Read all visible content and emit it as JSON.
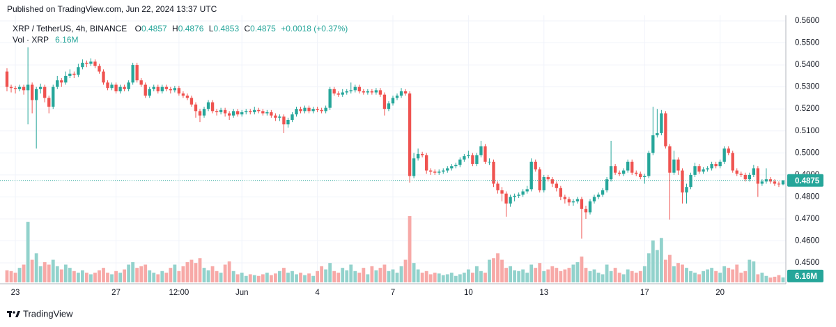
{
  "header": {
    "published": "Published on TradingView.com, Jun 22, 2024 13:37 UTC"
  },
  "footer": {
    "brand": "TradingView"
  },
  "chart_data": {
    "type": "candlestick",
    "title": "XRP / TetherUS, 4h, BINANCE",
    "ohlc_prefixes": [
      "O",
      "H",
      "L",
      "C"
    ],
    "change": "+0.0018 (+0.37%)",
    "volume_title": "Vol · XRP",
    "volume_label": "6.16M",
    "up_color": "#26a69a",
    "down_color": "#ef5350",
    "volume_up_color": "#92d2cc",
    "volume_down_color": "#f7a9a7",
    "ylim": [
      0.44114,
      0.56254
    ],
    "yticks": [
      {
        "value": 0.45,
        "label": "0.4500"
      },
      {
        "value": 0.46,
        "label": "0.4600"
      },
      {
        "value": 0.47,
        "label": "0.4700"
      },
      {
        "value": 0.48,
        "label": "0.4800"
      },
      {
        "value": 0.49,
        "label": "0.4900"
      },
      {
        "value": 0.5,
        "label": "0.5000"
      },
      {
        "value": 0.51,
        "label": "0.5100"
      },
      {
        "value": 0.52,
        "label": "0.5200"
      },
      {
        "value": 0.53,
        "label": "0.5300"
      },
      {
        "value": 0.54,
        "label": "0.5400"
      },
      {
        "value": 0.55,
        "label": "0.5500"
      },
      {
        "value": 0.56,
        "label": "0.5600"
      }
    ],
    "grid": true,
    "last_price_line": true,
    "categories": [
      null,
      null,
      "23",
      null,
      null,
      null,
      null,
      null,
      null,
      null,
      null,
      null,
      null,
      null,
      null,
      null,
      null,
      null,
      null,
      null,
      null,
      null,
      null,
      null,
      null,
      null,
      "27",
      null,
      null,
      null,
      null,
      null,
      null,
      null,
      null,
      null,
      null,
      null,
      null,
      null,
      null,
      "12:00",
      null,
      null,
      null,
      null,
      null,
      null,
      null,
      null,
      null,
      null,
      null,
      null,
      null,
      null,
      "Jun",
      null,
      null,
      null,
      null,
      null,
      null,
      null,
      null,
      null,
      null,
      null,
      null,
      null,
      null,
      null,
      null,
      null,
      "4",
      null,
      null,
      null,
      null,
      null,
      null,
      null,
      null,
      null,
      null,
      null,
      null,
      null,
      null,
      null,
      null,
      null,
      "7",
      null,
      null,
      null,
      null,
      null,
      null,
      null,
      null,
      null,
      null,
      null,
      null,
      null,
      null,
      null,
      null,
      null,
      "10",
      null,
      null,
      null,
      null,
      null,
      null,
      null,
      null,
      null,
      null,
      null,
      null,
      null,
      null,
      null,
      null,
      null,
      "13",
      null,
      null,
      null,
      null,
      null,
      null,
      null,
      null,
      null,
      null,
      null,
      null,
      null,
      null,
      null,
      null,
      null,
      null,
      null,
      null,
      null,
      null,
      null,
      "17",
      null,
      null,
      null,
      null,
      null,
      null,
      null,
      null,
      null,
      null,
      null,
      null,
      null,
      null,
      null,
      null,
      null,
      "20",
      null,
      null,
      null,
      null,
      null,
      null,
      null,
      null,
      null,
      null,
      null,
      null,
      null,
      null,
      null
    ],
    "open": [
      0.537,
      0.53,
      0.5295,
      0.529,
      0.53,
      0.5285,
      0.531,
      0.524,
      0.529,
      0.53,
      0.525,
      0.521,
      0.53,
      0.533,
      0.532,
      0.535,
      0.536,
      0.5355,
      0.539,
      0.541,
      0.5405,
      0.5415,
      0.5395,
      0.537,
      0.532,
      0.5295,
      0.531,
      0.528,
      0.53,
      0.529,
      0.532,
      0.54,
      0.533,
      0.531,
      0.526,
      0.529,
      0.53,
      0.528,
      0.53,
      0.529,
      0.5285,
      0.5295,
      0.527,
      0.526,
      0.525,
      0.522,
      0.519,
      0.517,
      0.52,
      0.523,
      0.519,
      0.5185,
      0.5195,
      0.518,
      0.517,
      0.519,
      0.5175,
      0.5185,
      0.519,
      0.5185,
      0.5195,
      0.519,
      0.518,
      0.5185,
      0.517,
      0.516,
      0.5165,
      0.513,
      0.515,
      0.5175,
      0.52,
      0.519,
      0.5205,
      0.519,
      0.52,
      0.5195,
      0.519,
      0.5205,
      0.529,
      0.527,
      0.5265,
      0.5275,
      0.528,
      0.5285,
      0.53,
      0.528,
      0.5275,
      0.528,
      0.5275,
      0.5285,
      0.5265,
      0.52,
      0.5225,
      0.525,
      0.526,
      0.528,
      0.527,
      0.4895,
      0.4975,
      0.4995,
      0.499,
      0.492,
      0.4915,
      0.491,
      0.4915,
      0.492,
      0.493,
      0.494,
      0.4945,
      0.497,
      0.4985,
      0.499,
      0.495,
      0.499,
      0.503,
      0.496,
      0.496,
      0.486,
      0.483,
      0.4815,
      0.477,
      0.48,
      0.4805,
      0.481,
      0.4825,
      0.4835,
      0.496,
      0.4925,
      0.483,
      0.489,
      0.488,
      0.486,
      0.484,
      0.48,
      0.479,
      0.4775,
      0.478,
      0.479,
      0.4745,
      0.473,
      0.478,
      0.48,
      0.481,
      0.483,
      0.488,
      0.494,
      0.491,
      0.4905,
      0.492,
      0.496,
      0.491,
      0.4905,
      0.489,
      0.4895,
      0.5,
      0.508,
      0.509,
      0.518,
      0.503,
      0.491,
      0.497,
      0.492,
      0.482,
      0.4845,
      0.49,
      0.494,
      0.4915,
      0.4925,
      0.493,
      0.495,
      0.494,
      0.496,
      0.502,
      0.5,
      0.492,
      0.4905,
      0.49,
      0.488,
      0.49,
      0.493,
      0.486,
      0.487,
      0.488,
      0.487,
      0.486,
      0.4857
    ],
    "high": [
      0.5385,
      0.531,
      0.5305,
      0.531,
      0.531,
      0.548,
      0.532,
      0.53,
      0.5315,
      0.531,
      0.526,
      0.531,
      0.535,
      0.534,
      0.537,
      0.538,
      0.537,
      0.5405,
      0.5425,
      0.542,
      0.543,
      0.5425,
      0.5405,
      0.538,
      0.533,
      0.532,
      0.532,
      0.531,
      0.531,
      0.533,
      0.541,
      0.541,
      0.534,
      0.532,
      0.53,
      0.531,
      0.531,
      0.531,
      0.531,
      0.53,
      0.5305,
      0.5305,
      0.528,
      0.527,
      0.526,
      0.523,
      0.52,
      0.521,
      0.524,
      0.524,
      0.52,
      0.5205,
      0.5205,
      0.519,
      0.52,
      0.52,
      0.5195,
      0.52,
      0.52,
      0.521,
      0.5205,
      0.52,
      0.5195,
      0.5195,
      0.518,
      0.5175,
      0.5175,
      0.516,
      0.5185,
      0.521,
      0.521,
      0.5215,
      0.5215,
      0.521,
      0.521,
      0.5205,
      0.5215,
      0.53,
      0.53,
      0.528,
      0.529,
      0.529,
      0.532,
      0.531,
      0.531,
      0.529,
      0.529,
      0.529,
      0.5295,
      0.5295,
      0.5275,
      0.5235,
      0.526,
      0.527,
      0.5295,
      0.529,
      0.528,
      0.5,
      0.502,
      0.5005,
      0.5,
      0.493,
      0.4925,
      0.4925,
      0.493,
      0.494,
      0.495,
      0.4955,
      0.498,
      0.4995,
      0.501,
      0.5,
      0.5,
      0.5055,
      0.504,
      0.4975,
      0.497,
      0.487,
      0.4845,
      0.4825,
      0.481,
      0.4815,
      0.482,
      0.4835,
      0.485,
      0.4975,
      0.497,
      0.4935,
      0.49,
      0.49,
      0.489,
      0.487,
      0.485,
      0.481,
      0.48,
      0.479,
      0.48,
      0.48,
      0.476,
      0.479,
      0.481,
      0.482,
      0.484,
      0.489,
      0.5055,
      0.495,
      0.492,
      0.493,
      0.497,
      0.497,
      0.492,
      0.4915,
      0.4905,
      0.501,
      0.521,
      0.52,
      0.5195,
      0.519,
      0.504,
      0.501,
      0.498,
      0.493,
      0.486,
      0.491,
      0.4955,
      0.495,
      0.4935,
      0.494,
      0.496,
      0.496,
      0.497,
      0.503,
      0.503,
      0.501,
      0.493,
      0.4915,
      0.491,
      0.491,
      0.4945,
      0.494,
      0.488,
      0.493,
      0.489,
      0.488,
      0.487,
      0.4876
    ],
    "low": [
      0.528,
      0.5275,
      0.527,
      0.528,
      0.5265,
      0.513,
      0.518,
      0.502,
      0.527,
      0.523,
      0.518,
      0.52,
      0.529,
      0.53,
      0.531,
      0.534,
      0.534,
      0.5345,
      0.538,
      0.539,
      0.5395,
      0.5385,
      0.536,
      0.531,
      0.5285,
      0.5285,
      0.527,
      0.527,
      0.528,
      0.528,
      0.531,
      0.532,
      0.53,
      0.525,
      0.525,
      0.528,
      0.527,
      0.527,
      0.528,
      0.527,
      0.5275,
      0.526,
      0.525,
      0.524,
      0.521,
      0.516,
      0.514,
      0.516,
      0.519,
      0.518,
      0.517,
      0.5175,
      0.5165,
      0.515,
      0.516,
      0.5165,
      0.5165,
      0.5175,
      0.5175,
      0.5175,
      0.518,
      0.517,
      0.517,
      0.516,
      0.5145,
      0.5145,
      0.509,
      0.5115,
      0.514,
      0.5165,
      0.518,
      0.518,
      0.518,
      0.518,
      0.5185,
      0.518,
      0.518,
      0.5195,
      0.526,
      0.5255,
      0.5255,
      0.5265,
      0.527,
      0.5275,
      0.527,
      0.5265,
      0.5265,
      0.5265,
      0.5265,
      0.5255,
      0.517,
      0.519,
      0.5215,
      0.524,
      0.525,
      0.526,
      0.4865,
      0.4885,
      0.4965,
      0.498,
      0.4905,
      0.49,
      0.49,
      0.49,
      0.4905,
      0.491,
      0.492,
      0.493,
      0.4935,
      0.496,
      0.4975,
      0.494,
      0.494,
      0.498,
      0.495,
      0.4945,
      0.4845,
      0.4815,
      0.478,
      0.471,
      0.4755,
      0.478,
      0.4795,
      0.48,
      0.4815,
      0.4825,
      0.4915,
      0.482,
      0.482,
      0.487,
      0.4845,
      0.4825,
      0.4785,
      0.477,
      0.476,
      0.476,
      0.477,
      0.461,
      0.47,
      0.472,
      0.477,
      0.479,
      0.48,
      0.482,
      0.487,
      0.49,
      0.4895,
      0.4895,
      0.491,
      0.49,
      0.4895,
      0.488,
      0.486,
      0.4885,
      0.499,
      0.507,
      0.508,
      0.502,
      0.4697,
      0.49,
      0.49,
      0.477,
      0.477,
      0.4835,
      0.489,
      0.4905,
      0.4905,
      0.4915,
      0.492,
      0.493,
      0.493,
      0.495,
      0.499,
      0.491,
      0.4895,
      0.489,
      0.487,
      0.487,
      0.489,
      0.48,
      0.485,
      0.486,
      0.486,
      0.485,
      0.4845,
      0.4853
    ],
    "close": [
      0.53,
      0.5295,
      0.529,
      0.53,
      0.5285,
      0.531,
      0.524,
      0.529,
      0.53,
      0.525,
      0.521,
      0.53,
      0.533,
      0.532,
      0.535,
      0.536,
      0.5355,
      0.539,
      0.541,
      0.5405,
      0.5415,
      0.5395,
      0.537,
      0.532,
      0.5295,
      0.531,
      0.528,
      0.53,
      0.529,
      0.532,
      0.54,
      0.533,
      0.531,
      0.526,
      0.529,
      0.53,
      0.528,
      0.53,
      0.529,
      0.5285,
      0.5295,
      0.527,
      0.526,
      0.525,
      0.522,
      0.519,
      0.517,
      0.52,
      0.523,
      0.519,
      0.5185,
      0.5195,
      0.518,
      0.517,
      0.519,
      0.5175,
      0.5185,
      0.519,
      0.5185,
      0.5195,
      0.519,
      0.518,
      0.5185,
      0.517,
      0.516,
      0.5165,
      0.513,
      0.515,
      0.5175,
      0.52,
      0.519,
      0.5205,
      0.519,
      0.52,
      0.5195,
      0.519,
      0.5205,
      0.529,
      0.527,
      0.5265,
      0.5275,
      0.528,
      0.5285,
      0.53,
      0.528,
      0.5275,
      0.528,
      0.5275,
      0.5285,
      0.5265,
      0.52,
      0.5225,
      0.525,
      0.526,
      0.528,
      0.527,
      0.4895,
      0.4975,
      0.4995,
      0.499,
      0.492,
      0.4915,
      0.491,
      0.4915,
      0.492,
      0.493,
      0.494,
      0.4945,
      0.497,
      0.4985,
      0.499,
      0.495,
      0.499,
      0.503,
      0.496,
      0.496,
      0.486,
      0.483,
      0.4815,
      0.477,
      0.48,
      0.4805,
      0.481,
      0.4825,
      0.4835,
      0.496,
      0.4925,
      0.483,
      0.489,
      0.488,
      0.486,
      0.484,
      0.48,
      0.479,
      0.4775,
      0.478,
      0.479,
      0.4745,
      0.473,
      0.478,
      0.48,
      0.481,
      0.483,
      0.488,
      0.494,
      0.491,
      0.4905,
      0.492,
      0.496,
      0.491,
      0.4905,
      0.489,
      0.4895,
      0.5,
      0.508,
      0.509,
      0.518,
      0.503,
      0.491,
      0.497,
      0.492,
      0.482,
      0.4845,
      0.49,
      0.494,
      0.4915,
      0.4925,
      0.493,
      0.495,
      0.494,
      0.496,
      0.502,
      0.5,
      0.492,
      0.4905,
      0.49,
      0.488,
      0.49,
      0.493,
      0.486,
      0.487,
      0.488,
      0.487,
      0.486,
      0.4857,
      0.4875
    ],
    "volume": [
      15,
      14,
      12,
      18,
      22,
      75,
      28,
      36,
      20,
      25,
      22,
      28,
      20,
      16,
      22,
      18,
      14,
      12,
      15,
      12,
      10,
      12,
      15,
      18,
      12,
      10,
      14,
      12,
      16,
      22,
      25,
      18,
      20,
      22,
      15,
      12,
      10,
      14,
      12,
      18,
      22,
      14,
      20,
      25,
      28,
      24,
      30,
      18,
      15,
      20,
      14,
      12,
      22,
      26,
      14,
      10,
      12,
      8,
      10,
      9,
      8,
      10,
      12,
      9,
      11,
      14,
      18,
      12,
      14,
      10,
      12,
      9,
      11,
      8,
      14,
      20,
      16,
      24,
      14,
      12,
      18,
      15,
      22,
      14,
      12,
      18,
      10,
      20,
      15,
      18,
      22,
      14,
      16,
      12,
      20,
      28,
      82,
      24,
      16,
      12,
      14,
      10,
      12,
      11,
      9,
      10,
      12,
      8,
      10,
      12,
      16,
      12,
      20,
      14,
      12,
      28,
      30,
      36,
      28,
      18,
      20,
      15,
      14,
      16,
      12,
      22,
      18,
      24,
      14,
      16,
      20,
      18,
      14,
      16,
      18,
      22,
      25,
      32,
      18,
      14,
      16,
      12,
      10,
      22,
      14,
      18,
      12,
      10,
      16,
      14,
      12,
      14,
      20,
      36,
      52,
      40,
      55,
      28,
      34,
      20,
      24,
      22,
      18,
      14,
      12,
      10,
      14,
      16,
      18,
      14,
      12,
      20,
      18,
      16,
      22,
      12,
      14,
      28,
      26,
      10,
      12,
      8,
      6,
      7,
      9,
      6.16
    ]
  }
}
